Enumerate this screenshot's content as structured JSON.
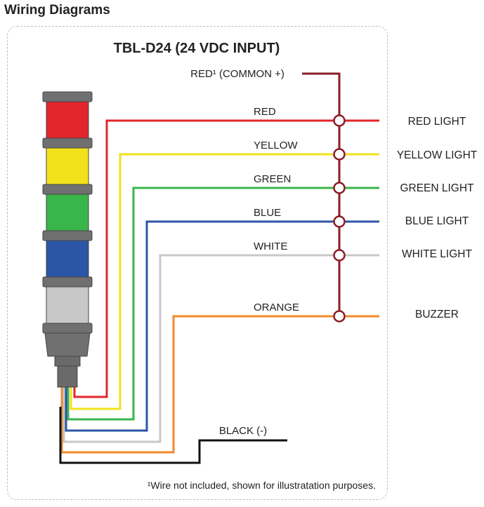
{
  "page_title": "Wiring Diagrams",
  "diagram": {
    "title": "TBL-D24 (24 VDC INPUT)",
    "common_label": "RED¹ (COMMON +)",
    "wires": [
      {
        "label": "RED",
        "output": "RED LIGHT",
        "color": "#e2262b"
      },
      {
        "label": "YELLOW",
        "output": "YELLOW LIGHT",
        "color": "#f3e21b"
      },
      {
        "label": "GREEN",
        "output": "GREEN LIGHT",
        "color": "#3ab54a"
      },
      {
        "label": "BLUE",
        "output": "BLUE LIGHT",
        "color": "#2b56a6"
      },
      {
        "label": "WHITE",
        "output": "WHITE LIGHT",
        "color": "#c8c8c8"
      },
      {
        "label": "ORANGE",
        "output": "BUZZER",
        "color": "#f08a2a"
      }
    ],
    "ground_label": "BLACK (-)",
    "common_color": "#8a1c25",
    "footnote": "¹Wire not included, shown for illustratation purposes."
  }
}
